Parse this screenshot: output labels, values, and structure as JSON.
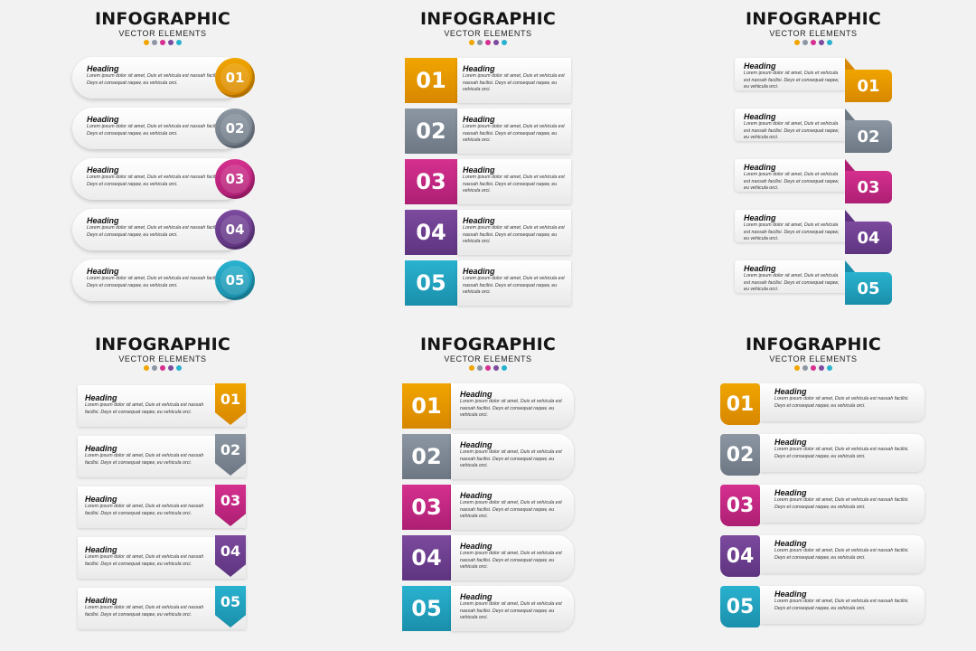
{
  "title": "INFOGRAPHIC",
  "subtitle": "VECTOR ELEMENTS",
  "heading": "Heading",
  "body": "Lorem ipsum dolor sit amet, Duis et vehicula est nassah facilisi. Deys et consequat raqaw, eu vehicula orci.",
  "steps": [
    {
      "number": "01",
      "color": "#f0a500",
      "dark": "#d78700"
    },
    {
      "number": "02",
      "color": "#8c97a3",
      "dark": "#6c7783"
    },
    {
      "number": "03",
      "color": "#d5308f",
      "dark": "#ad1f73"
    },
    {
      "number": "04",
      "color": "#7c4a9e",
      "dark": "#5e3480"
    },
    {
      "number": "05",
      "color": "#29b2cf",
      "dark": "#1a8fab"
    }
  ],
  "dot_colors": [
    "#f0a500",
    "#8c97a3",
    "#d5308f",
    "#7c4a9e",
    "#29b2cf"
  ]
}
